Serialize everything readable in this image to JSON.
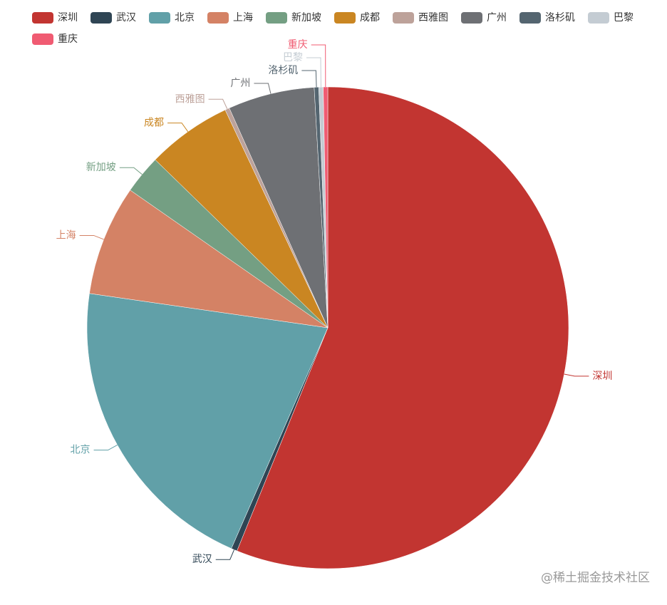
{
  "chart_data": {
    "type": "pie",
    "categories": [
      "深圳",
      "武汉",
      "北京",
      "上海",
      "新加坡",
      "成都",
      "西雅图",
      "广州",
      "洛杉矶",
      "巴黎",
      "重庆"
    ],
    "values": [
      56.1,
      0.4,
      20.7,
      7.4,
      2.6,
      5.7,
      0.3,
      5.8,
      0.3,
      0.3,
      0.3
    ],
    "colors": [
      "#c23531",
      "#2f4554",
      "#61a0a8",
      "#d48265",
      "#749f83",
      "#ca8622",
      "#bda29a",
      "#6e7074",
      "#546570",
      "#c4ccd3",
      "#f05b72"
    ],
    "legend": "top-left",
    "watermark": "@稀土掘金技术社区"
  }
}
